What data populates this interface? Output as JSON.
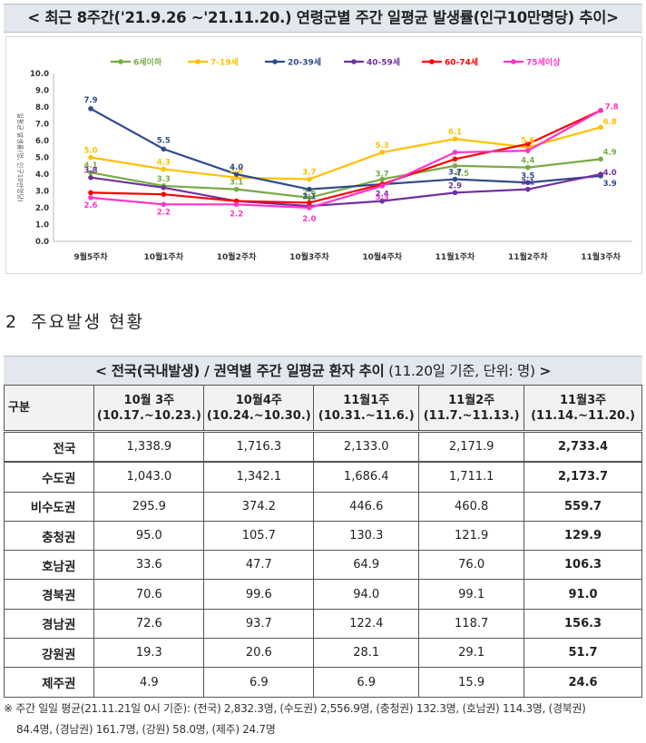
{
  "chart_title": "< 최근 8주간('21.9.26 ~'21.11.20.) 연령군별 주간 일평균 발생률(인구10만명당) 추이>",
  "chart_data": {
    "type": "line",
    "title": "최근 8주간('21.9.26 ~'21.11.20.) 연령군별 주간 일평균 발생률(인구10만명당) 추이",
    "ylabel": "일평균 발생률(명, 인구10만명당)",
    "ylim": [
      0,
      10
    ],
    "yticks": [
      "0.0",
      "1.0",
      "2.0",
      "3.0",
      "4.0",
      "5.0",
      "6.0",
      "7.0",
      "8.0",
      "9.0",
      "10.0"
    ],
    "categories": [
      "9월5주차",
      "10월1주차",
      "10월2주차",
      "10월3주차",
      "10월4주차",
      "11월1주차",
      "11월2주차",
      "11월3주차"
    ],
    "series": [
      {
        "name": "6세이하",
        "color": "#77ab43",
        "values": [
          4.1,
          3.3,
          3.1,
          2.6,
          3.7,
          4.5,
          4.4,
          4.9
        ],
        "labels": [
          "4.1",
          "3.3",
          "3.1",
          "2.6",
          "3.7",
          "4.5",
          "4.4",
          "4.9"
        ]
      },
      {
        "name": "7-19세",
        "color": "#ffc000",
        "values": [
          5.0,
          4.3,
          3.8,
          3.7,
          5.3,
          6.1,
          5.6,
          6.8
        ],
        "labels": [
          "5.0",
          "4.3",
          "3.8",
          "3.7",
          "5.3",
          "6.1",
          "5.6",
          "6.8"
        ]
      },
      {
        "name": "20-39세",
        "color": "#2f4b8a",
        "values": [
          7.9,
          5.5,
          4.0,
          3.1,
          3.4,
          3.7,
          3.5,
          3.9
        ],
        "labels": [
          "7.9",
          "5.5",
          "4.0",
          "3.1",
          "",
          "3.7",
          "3.5",
          "3.9"
        ]
      },
      {
        "name": "40-59세",
        "color": "#7030a0",
        "values": [
          3.8,
          3.2,
          2.4,
          2.1,
          2.4,
          2.9,
          3.1,
          4.0
        ],
        "labels": [
          "3.8",
          "",
          "",
          "",
          "2.4",
          "2.9",
          "3.1",
          "4.0"
        ]
      },
      {
        "name": "60-74세",
        "color": "#ff0000",
        "values": [
          2.9,
          2.8,
          2.4,
          2.3,
          3.4,
          4.9,
          5.8,
          7.8
        ],
        "labels": [
          "",
          "",
          "",
          "",
          "",
          "",
          "",
          ""
        ]
      },
      {
        "name": "75세이상",
        "color": "#ff33cc",
        "values": [
          2.6,
          2.2,
          2.2,
          2.0,
          3.3,
          5.3,
          5.4,
          7.8
        ],
        "labels": [
          "2.6",
          "2.2",
          "2.2",
          "2.0",
          "3.3",
          "",
          "",
          "7.8"
        ]
      }
    ]
  },
  "section": {
    "num": "2",
    "title": "주요발생 현황"
  },
  "table": {
    "title_main": "< 전국(국내발생) / 권역별 주간 일평균 환자 추이",
    "title_sub": "(11.20일 기준, 단위: 명)",
    "title_end": ">",
    "header_label": "구분",
    "columns": [
      {
        "line1": "10월 3주",
        "line2": "(10.17.~10.23.)"
      },
      {
        "line1": "10월4주",
        "line2": "(10.24.~10.30.)"
      },
      {
        "line1": "11월1주",
        "line2": "(10.31.~11.6.)"
      },
      {
        "line1": "11월2주",
        "line2": "(11.7.~11.13.)"
      },
      {
        "line1": "11월3주",
        "line2": "(11.14.~11.20.)"
      }
    ],
    "rows": [
      {
        "region": "전국",
        "values": [
          "1,338.9",
          "1,716.3",
          "2,133.0",
          "2,171.9",
          "2,733.4"
        ]
      },
      {
        "region": "수도권",
        "values": [
          "1,043.0",
          "1,342.1",
          "1,686.4",
          "1,711.1",
          "2,173.7"
        ]
      },
      {
        "region": "비수도권",
        "values": [
          "295.9",
          "374.2",
          "446.6",
          "460.8",
          "559.7"
        ]
      },
      {
        "region": "충청권",
        "values": [
          "95.0",
          "105.7",
          "130.3",
          "121.9",
          "129.9"
        ]
      },
      {
        "region": "호남권",
        "values": [
          "33.6",
          "47.7",
          "64.9",
          "76.0",
          "106.3"
        ]
      },
      {
        "region": "경북권",
        "values": [
          "70.6",
          "99.6",
          "94.0",
          "99.1",
          "91.0"
        ]
      },
      {
        "region": "경남권",
        "values": [
          "72.6",
          "93.7",
          "122.4",
          "118.7",
          "156.3"
        ]
      },
      {
        "region": "강원권",
        "values": [
          "19.3",
          "20.6",
          "28.1",
          "29.1",
          "51.7"
        ]
      },
      {
        "region": "제주권",
        "values": [
          "4.9",
          "6.9",
          "6.9",
          "15.9",
          "24.6"
        ]
      }
    ]
  },
  "footnote": {
    "line1": "※ 주간 일일 평균(21.11.21일 0시 기준): (전국) 2,832.3명, (수도권) 2,556.9명, (충청권) 132.3명, (호남권) 114.3명, (경북권)",
    "line2": "84.4명, (경남권) 161.7명, (강원) 58.0명, (제주) 24.7명"
  }
}
